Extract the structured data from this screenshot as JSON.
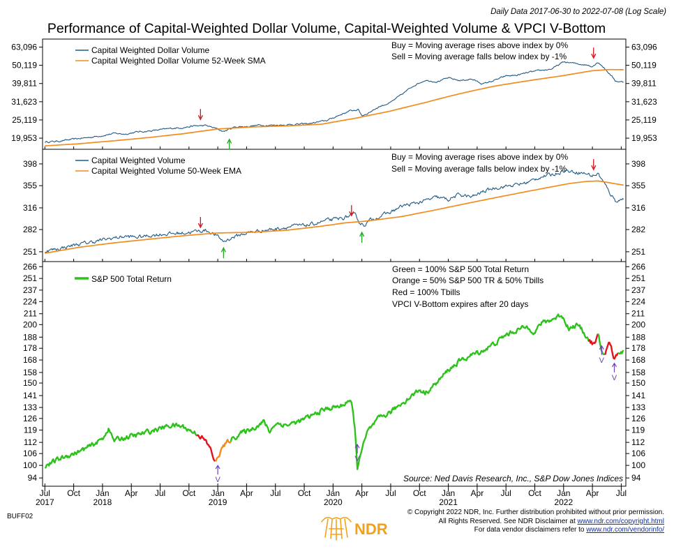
{
  "header": {
    "subtitle": "Daily Data 2017-06-30 to 2022-07-08 (Log Scale)",
    "title": "Performance of Capital-Weighted Dollar Volume, Capital-Weighted Volume & VPCI V-Bottom"
  },
  "colors": {
    "index_line": "#1f5a86",
    "moving_avg": "#f28c1c",
    "sp_green": "#2ec21c",
    "sp_orange": "#f28c1c",
    "sp_red": "#e3121b",
    "buy_arrow": "#22a520",
    "sell_arrow": "#d4101a",
    "vbottom": "#6a3fc0",
    "ndr_orange": "#f4a11a"
  },
  "chart_data": [
    {
      "type": "line",
      "id": "panel1",
      "scale": "log",
      "ylim": [
        17800,
        68000
      ],
      "yticks": [
        "63,096",
        "50,119",
        "39,811",
        "31,623",
        "25,119",
        "19,953"
      ],
      "ytick_values": [
        63096,
        50119,
        39811,
        31623,
        25119,
        19953
      ],
      "legend": [
        "Capital Weighted Dollar Volume",
        "Capital Weighted Dollar Volume 52-Week SMA"
      ],
      "notes": [
        "Buy = Moving average rises above index by 0%",
        "Sell = Moving average falls below index by -1%"
      ],
      "series": [
        {
          "name": "Capital Weighted Dollar Volume",
          "x": [
            2017.5,
            2017.62,
            2017.75,
            2017.9,
            2018.0,
            2018.1,
            2018.2,
            2018.3,
            2018.4,
            2018.5,
            2018.6,
            2018.7,
            2018.8,
            2018.9,
            2018.98,
            2019.05,
            2019.15,
            2019.25,
            2019.35,
            2019.5,
            2019.65,
            2019.8,
            2019.95,
            2020.05,
            2020.15,
            2020.22,
            2020.25,
            2020.3,
            2020.4,
            2020.5,
            2020.6,
            2020.7,
            2020.8,
            2020.9,
            2021.0,
            2021.1,
            2021.2,
            2021.3,
            2021.4,
            2021.5,
            2021.6,
            2021.7,
            2021.8,
            2021.9,
            2022.0,
            2022.1,
            2022.2,
            2022.25,
            2022.3,
            2022.4,
            2022.45,
            2022.52
          ],
          "values": [
            19000,
            19200,
            19700,
            20200,
            20600,
            21200,
            21000,
            21600,
            21800,
            22200,
            22600,
            22800,
            23300,
            23400,
            22600,
            21700,
            23000,
            23100,
            23500,
            23500,
            23700,
            24000,
            25000,
            26600,
            28200,
            28600,
            26500,
            27300,
            29700,
            31300,
            34800,
            38800,
            41500,
            40700,
            42700,
            41300,
            42100,
            39600,
            41400,
            43800,
            44200,
            45900,
            46900,
            47900,
            52300,
            51300,
            50300,
            49500,
            52200,
            44900,
            41100,
            40500
          ]
        },
        {
          "name": "Capital Weighted Dollar Volume 52-Week SMA",
          "x": [
            2017.5,
            2017.8,
            2018.1,
            2018.4,
            2018.7,
            2019.0,
            2019.3,
            2019.6,
            2019.9,
            2020.2,
            2020.5,
            2020.8,
            2021.1,
            2021.4,
            2021.7,
            2022.0,
            2022.25,
            2022.4,
            2022.52
          ],
          "values": [
            18100,
            18600,
            19300,
            20100,
            21100,
            22400,
            23000,
            23300,
            23800,
            25700,
            28100,
            31300,
            35000,
            38500,
            41300,
            44000,
            46800,
            47500,
            47400
          ]
        }
      ],
      "annotations": [
        {
          "kind": "sell",
          "x": 2018.85,
          "y": 24600
        },
        {
          "kind": "buy",
          "x": 2019.1,
          "y": 20200
        },
        {
          "kind": "sell",
          "x": 2022.26,
          "y": 53500
        }
      ]
    },
    {
      "type": "line",
      "id": "panel2",
      "scale": "log",
      "ylim": [
        241,
        425
      ],
      "yticks": [
        "398",
        "355",
        "316",
        "282",
        "251"
      ],
      "ytick_values": [
        398,
        355,
        316,
        282,
        251
      ],
      "legend": [
        "Capital Weighted Volume",
        "Capital Weighted Volume 50-Week EMA"
      ],
      "notes": [
        "Buy = Moving average rises above index by 0%",
        "Sell = Moving average falls below index by -1%"
      ],
      "series": [
        {
          "name": "Capital Weighted Volume",
          "x": [
            2017.5,
            2017.62,
            2017.75,
            2017.9,
            2018.0,
            2018.1,
            2018.2,
            2018.3,
            2018.4,
            2018.5,
            2018.6,
            2018.7,
            2018.8,
            2018.9,
            2018.98,
            2019.05,
            2019.15,
            2019.25,
            2019.35,
            2019.5,
            2019.65,
            2019.8,
            2019.95,
            2020.05,
            2020.15,
            2020.2,
            2020.23,
            2020.27,
            2020.32,
            2020.4,
            2020.5,
            2020.6,
            2020.7,
            2020.8,
            2020.9,
            2021.0,
            2021.1,
            2021.2,
            2021.3,
            2021.4,
            2021.5,
            2021.6,
            2021.7,
            2021.8,
            2021.9,
            2022.0,
            2022.1,
            2022.2,
            2022.25,
            2022.3,
            2022.4,
            2022.45,
            2022.52
          ],
          "values": [
            252,
            255,
            260,
            264,
            267,
            270,
            272,
            271,
            273,
            275,
            276,
            277,
            279,
            281,
            274,
            265,
            272,
            277,
            280,
            283,
            287,
            289,
            296,
            298,
            303,
            304,
            292,
            289,
            296,
            302,
            309,
            319,
            323,
            328,
            334,
            330,
            339,
            334,
            344,
            351,
            354,
            357,
            362,
            372,
            376,
            384,
            382,
            378,
            374,
            378,
            342,
            328,
            331
          ]
        },
        {
          "name": "Capital Weighted Volume 50-Week EMA",
          "x": [
            2017.5,
            2017.8,
            2018.1,
            2018.4,
            2018.7,
            2019.0,
            2019.3,
            2019.6,
            2019.9,
            2020.1,
            2020.3,
            2020.6,
            2020.9,
            2021.2,
            2021.5,
            2021.8,
            2022.05,
            2022.2,
            2022.3,
            2022.52
          ],
          "values": [
            249,
            257,
            263,
            268,
            273,
            277,
            278,
            281,
            287,
            292,
            295,
            302,
            313,
            325,
            337,
            349,
            359,
            363,
            364,
            356
          ]
        }
      ],
      "annotations": [
        {
          "kind": "sell",
          "x": 2018.85,
          "y": 282
        },
        {
          "kind": "buy",
          "x": 2019.05,
          "y": 259
        },
        {
          "kind": "sell",
          "x": 2020.16,
          "y": 300
        },
        {
          "kind": "buy",
          "x": 2020.25,
          "y": 281
        },
        {
          "kind": "sell",
          "x": 2022.26,
          "y": 382
        }
      ]
    },
    {
      "type": "line",
      "id": "panel3",
      "scale": "log",
      "ylim": [
        91.5,
        269
      ],
      "yticks": [
        "266",
        "251",
        "237",
        "224",
        "211",
        "200",
        "188",
        "178",
        "168",
        "158",
        "150",
        "141",
        "133",
        "126",
        "119",
        "112",
        "106",
        "100",
        "94"
      ],
      "ytick_values": [
        266,
        251,
        237,
        224,
        211,
        200,
        188,
        178,
        168,
        158,
        150,
        141,
        133,
        126,
        119,
        112,
        106,
        100,
        94
      ],
      "legend": [
        "S&P 500 Total Return"
      ],
      "notes": [
        "Green = 100% S&P 500 Total Return",
        "Orange = 50% S&P 500 TR & 50% Tbills",
        "Red = 100% Tbills",
        "VPCI V-Bottom expires after 20 days"
      ],
      "series": [
        {
          "name": "S&P 500 Total Return",
          "x": [
            2017.5,
            2017.55,
            2017.62,
            2017.7,
            2017.8,
            2017.9,
            2018.0,
            2018.05,
            2018.1,
            2018.15,
            2018.22,
            2018.3,
            2018.4,
            2018.5,
            2018.6,
            2018.7,
            2018.78,
            2018.82,
            2018.86,
            2018.9,
            2018.94,
            2018.98,
            2019.0,
            2019.05,
            2019.12,
            2019.2,
            2019.3,
            2019.4,
            2019.45,
            2019.5,
            2019.6,
            2019.7,
            2019.8,
            2019.9,
            2020.0,
            2020.08,
            2020.13,
            2020.16,
            2020.19,
            2020.21,
            2020.23,
            2020.26,
            2020.3,
            2020.4,
            2020.5,
            2020.6,
            2020.7,
            2020.75,
            2020.8,
            2020.9,
            2021.0,
            2021.1,
            2021.2,
            2021.3,
            2021.4,
            2021.5,
            2021.6,
            2021.7,
            2021.75,
            2021.8,
            2021.9,
            2021.98,
            2022.05,
            2022.12,
            2022.18,
            2022.22,
            2022.27,
            2022.3,
            2022.33,
            2022.36,
            2022.4,
            2022.44,
            2022.47,
            2022.52
          ],
          "values": [
            100,
            101,
            103,
            105,
            107,
            110,
            114,
            120,
            113,
            114,
            115,
            116,
            118,
            120,
            122,
            121,
            118,
            117,
            115,
            112,
            108,
            101,
            104,
            110,
            114,
            117,
            120,
            124,
            118,
            123,
            122,
            124,
            127,
            131,
            133,
            134,
            138,
            135,
            120,
            97,
            105,
            110,
            118,
            126,
            130,
            136,
            142,
            145,
            143,
            150,
            160,
            167,
            172,
            176,
            182,
            190,
            195,
            198,
            192,
            201,
            205,
            210,
            196,
            200,
            192,
            185,
            181,
            189,
            175,
            173,
            184,
            168,
            175,
            175
          ],
          "segment_colors": [
            "G",
            "G",
            "G",
            "G",
            "G",
            "G",
            "G",
            "G",
            "G",
            "G",
            "G",
            "G",
            "G",
            "G",
            "G",
            "G",
            "G",
            "R",
            "R",
            "R",
            "R",
            "O",
            "O",
            "O",
            "G",
            "G",
            "G",
            "G",
            "G",
            "G",
            "G",
            "G",
            "G",
            "G",
            "G",
            "G",
            "G",
            "G",
            "G",
            "G",
            "G",
            "G",
            "G",
            "G",
            "G",
            "G",
            "G",
            "G",
            "G",
            "G",
            "G",
            "G",
            "G",
            "G",
            "G",
            "G",
            "G",
            "G",
            "G",
            "G",
            "G",
            "G",
            "G",
            "G",
            "G",
            "R",
            "R",
            "G",
            "G",
            "R",
            "R",
            "R",
            "G"
          ]
        }
      ],
      "annotations": [
        {
          "kind": "v",
          "x": 2019.0,
          "y": 101,
          "label": "V"
        },
        {
          "kind": "v",
          "x": 2020.21,
          "y": 112,
          "label": "V"
        },
        {
          "kind": "v",
          "x": 2022.33,
          "y": 182,
          "label": "V"
        },
        {
          "kind": "v",
          "x": 2022.44,
          "y": 167,
          "label": "V"
        }
      ],
      "source": "Source:   Ned Davis Research, Inc., S&P Dow Jones Indices"
    }
  ],
  "x_axis": {
    "xlim": [
      2017.48,
      2022.54
    ],
    "months": [
      {
        "label": "Jul",
        "x": 2017.5
      },
      {
        "label": "Oct",
        "x": 2017.75
      },
      {
        "label": "Jan",
        "x": 2018.0
      },
      {
        "label": "Apr",
        "x": 2018.25
      },
      {
        "label": "Jul",
        "x": 2018.5
      },
      {
        "label": "Oct",
        "x": 2018.75
      },
      {
        "label": "Jan",
        "x": 2019.0
      },
      {
        "label": "Apr",
        "x": 2019.25
      },
      {
        "label": "Jul",
        "x": 2019.5
      },
      {
        "label": "Oct",
        "x": 2019.75
      },
      {
        "label": "Jan",
        "x": 2020.0
      },
      {
        "label": "Apr",
        "x": 2020.25
      },
      {
        "label": "Jul",
        "x": 2020.5
      },
      {
        "label": "Oct",
        "x": 2020.75
      },
      {
        "label": "Jan",
        "x": 2021.0
      },
      {
        "label": "Apr",
        "x": 2021.25
      },
      {
        "label": "Jul",
        "x": 2021.5
      },
      {
        "label": "Oct",
        "x": 2021.75
      },
      {
        "label": "Jan",
        "x": 2022.0
      },
      {
        "label": "Apr",
        "x": 2022.25
      },
      {
        "label": "Jul",
        "x": 2022.5
      }
    ],
    "years": [
      {
        "label": "2017",
        "x": 2017.5
      },
      {
        "label": "2018",
        "x": 2018.0
      },
      {
        "label": "2019",
        "x": 2019.0
      },
      {
        "label": "2020",
        "x": 2020.0
      },
      {
        "label": "2021",
        "x": 2021.0
      },
      {
        "label": "2022",
        "x": 2022.0
      }
    ]
  },
  "footer": {
    "code": "BUFF02",
    "logo_text": "NDR",
    "copyright": "© Copyright 2022 NDR, Inc. Further distribution prohibited without prior permission.",
    "rights_prefix": "All Rights Reserved. See NDR Disclaimer at ",
    "rights_link": "www.ndr.com/copyright.html",
    "vendor_prefix": "For data vendor disclaimers refer to ",
    "vendor_link": "www.ndr.com/vendorinfo/"
  }
}
